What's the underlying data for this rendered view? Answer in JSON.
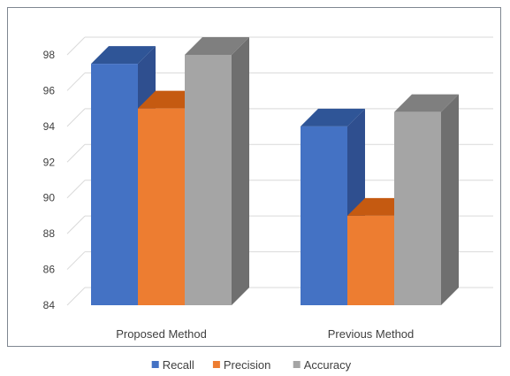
{
  "chart_data": {
    "type": "bar",
    "style": "3d-clustered-column",
    "categories": [
      "Proposed Method",
      "Previous Method"
    ],
    "series": [
      {
        "name": "Recall",
        "values": [
          97.5,
          94.0
        ],
        "color": "#4472c4",
        "top_color": "#2f5597",
        "side_color": "#2f4f8f"
      },
      {
        "name": "Precision",
        "values": [
          95.0,
          89.0
        ],
        "color": "#ed7d31",
        "top_color": "#c55a11",
        "side_color": "#b75a1c"
      },
      {
        "name": "Accuracy",
        "values": [
          98.0,
          94.8
        ],
        "color": "#a5a5a5",
        "top_color": "#7f7f7f",
        "side_color": "#6f6f6f"
      }
    ],
    "ylim": [
      84,
      98
    ],
    "yticks": [
      "84",
      "86",
      "88",
      "90",
      "92",
      "94",
      "96",
      "98"
    ],
    "grid": true,
    "legend_position": "bottom"
  }
}
